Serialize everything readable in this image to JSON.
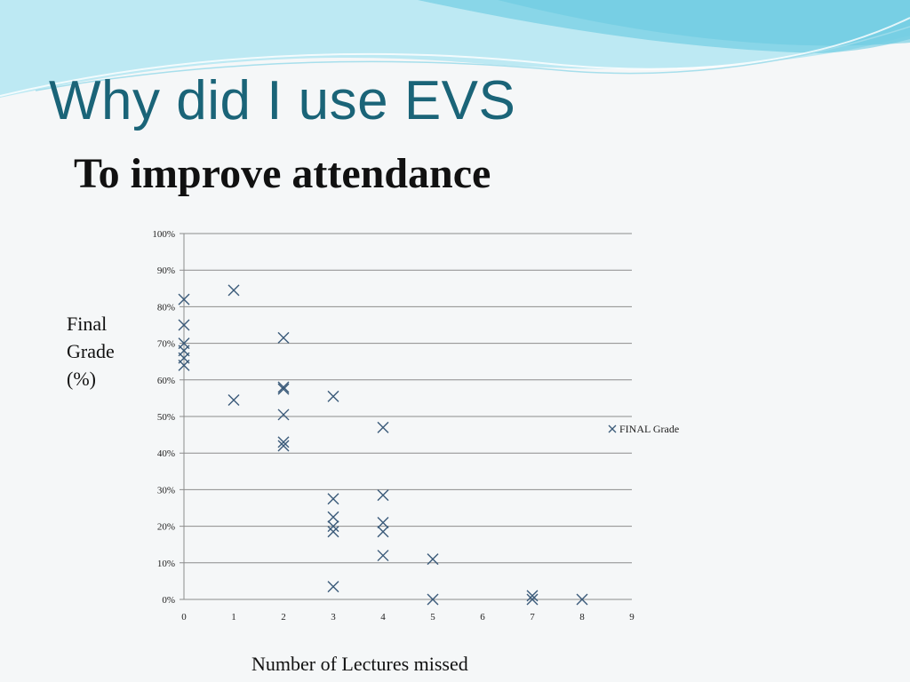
{
  "slide": {
    "title": "Why did I use EVS",
    "subtitle": "To improve attendance"
  },
  "colors": {
    "title": "#1a6478",
    "marker": "#3b5b7a",
    "grid": "#8c8c8c",
    "wave_light": "#b9e8f2",
    "wave_mid": "#7fd3e6"
  },
  "chart_data": {
    "type": "scatter",
    "xlabel": "Number of Lectures missed",
    "ylabel_lines": [
      "Final",
      "Grade",
      "(%)"
    ],
    "xlim": [
      0,
      9
    ],
    "ylim": [
      0,
      100
    ],
    "x_ticks": [
      "0",
      "1",
      "2",
      "3",
      "4",
      "5",
      "6",
      "7",
      "8",
      "9"
    ],
    "y_ticks": [
      "0%",
      "10%",
      "20%",
      "30%",
      "40%",
      "50%",
      "60%",
      "70%",
      "80%",
      "90%",
      "100%"
    ],
    "legend_position": "right",
    "grid": true,
    "series": [
      {
        "name": "FINAL Grade",
        "marker": "x",
        "points": [
          [
            0,
            82
          ],
          [
            0,
            75
          ],
          [
            0,
            70
          ],
          [
            0,
            68
          ],
          [
            0,
            66
          ],
          [
            0,
            64
          ],
          [
            1,
            84.5
          ],
          [
            1,
            54.5
          ],
          [
            2,
            71.5
          ],
          [
            2,
            58
          ],
          [
            2,
            57.5
          ],
          [
            2,
            50.5
          ],
          [
            2,
            43
          ],
          [
            2,
            42
          ],
          [
            3,
            55.5
          ],
          [
            3,
            27.5
          ],
          [
            3,
            22.5
          ],
          [
            3,
            20
          ],
          [
            3,
            18.5
          ],
          [
            3,
            3.5
          ],
          [
            4,
            47
          ],
          [
            4,
            28.5
          ],
          [
            4,
            21
          ],
          [
            4,
            18.5
          ],
          [
            4,
            12
          ],
          [
            5,
            11
          ],
          [
            5,
            0
          ],
          [
            7,
            1
          ],
          [
            7,
            0
          ],
          [
            8,
            0
          ]
        ]
      }
    ]
  }
}
